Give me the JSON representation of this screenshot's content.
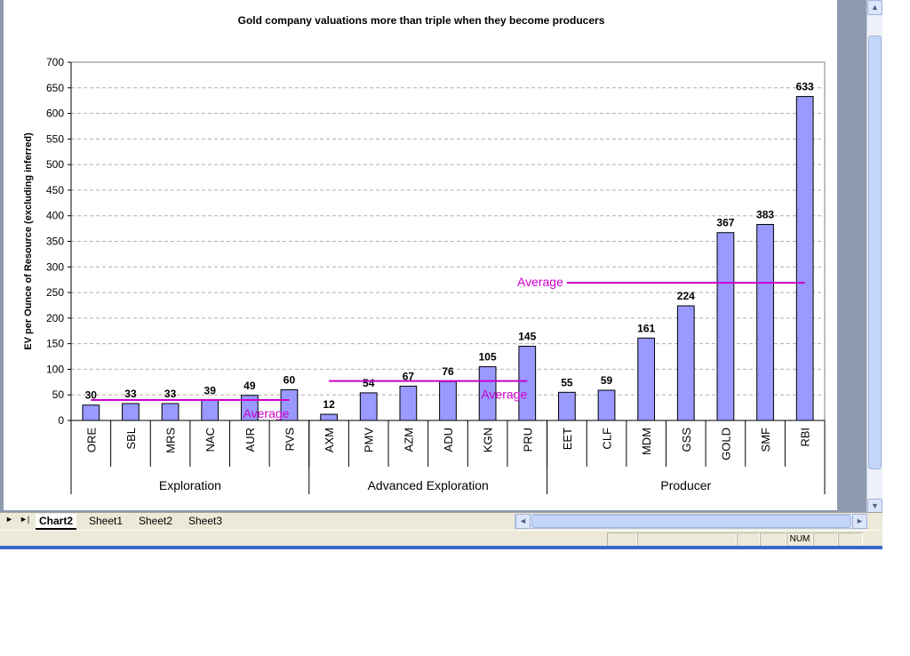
{
  "chart_data": {
    "type": "bar",
    "title": "Gold company valuations more than triple when they become producers",
    "ylabel": "EV per Ounce of Resource (excluding inferred)",
    "xlabel": "",
    "ylim": [
      0,
      700
    ],
    "yticks": [
      0,
      50,
      100,
      150,
      200,
      250,
      300,
      350,
      400,
      450,
      500,
      550,
      600,
      650,
      700
    ],
    "grid": true,
    "bar_color": "#9999ff",
    "average_line_color": "#cc00cc",
    "categories": [
      "ORE",
      "SBL",
      "MRS",
      "NAC",
      "AUR",
      "RVS",
      "AXM",
      "PMV",
      "AZM",
      "ADU",
      "KGN",
      "PRU",
      "EET",
      "CLF",
      "MDM",
      "GSS",
      "GOLD",
      "SMF",
      "RBI"
    ],
    "values": [
      30,
      33,
      33,
      39,
      49,
      60,
      12,
      54,
      67,
      76,
      105,
      145,
      55,
      59,
      161,
      224,
      367,
      383,
      633
    ],
    "groups": [
      {
        "name": "Exploration",
        "start": 0,
        "end": 5,
        "average": 40,
        "average_label": "Average"
      },
      {
        "name": "Advanced Exploration",
        "start": 6,
        "end": 11,
        "average": 77,
        "average_label": "Average"
      },
      {
        "name": "Producer",
        "start": 12,
        "end": 18,
        "average": 269,
        "average_label": "Average"
      }
    ]
  },
  "sheet_tabs": [
    "Chart2",
    "Sheet1",
    "Sheet2",
    "Sheet3"
  ],
  "active_tab": "Chart2",
  "status": {
    "num": "NUM"
  }
}
